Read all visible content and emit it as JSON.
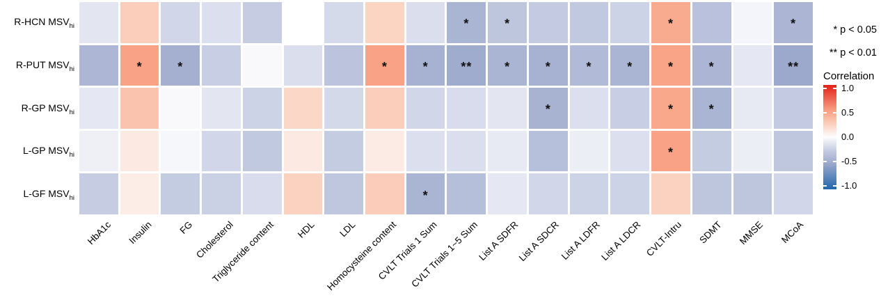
{
  "legend": {
    "p05": "* p < 0.05",
    "p01": "** p < 0.01",
    "colorbar_title": "Correlation",
    "colorbar_ticks": [
      "1.0",
      "0.5",
      "0.0",
      "-0.5",
      "-1.0"
    ],
    "colorbar_tick_values": [
      1.0,
      0.5,
      0.0,
      -0.5,
      -1.0
    ]
  },
  "chart_data": {
    "type": "heatmap",
    "rows": [
      {
        "label": "R-HCN MSV",
        "sub": "hi"
      },
      {
        "label": "R-PUT MSV",
        "sub": "hi"
      },
      {
        "label": "R-GP MSV",
        "sub": "hi"
      },
      {
        "label": "L-GP MSV",
        "sub": "hi"
      },
      {
        "label": "L-GF MSV",
        "sub": "hi"
      }
    ],
    "columns": [
      "HbA1c",
      "Insulin",
      "FG",
      "Cholesterol",
      "Triglyceride content",
      "HDL",
      "LDL",
      "Homocysteine content",
      "CVLT Trials 1 Sum",
      "CVLT Trials 1~5 Sum",
      "List A SDFR",
      "List A SDCR",
      "List A LDFR",
      "List A LDCR",
      "CVLT-Intru",
      "SDMT",
      "MMSE",
      "MCoA"
    ],
    "values": [
      [
        -0.12,
        0.26,
        -0.2,
        -0.15,
        -0.25,
        null,
        -0.18,
        0.23,
        -0.16,
        -0.42,
        -0.3,
        -0.27,
        -0.28,
        -0.22,
        0.45,
        -0.33,
        -0.04,
        -0.41
      ],
      [
        -0.4,
        0.5,
        -0.45,
        -0.24,
        -0.02,
        -0.16,
        -0.31,
        0.5,
        -0.44,
        -0.48,
        -0.42,
        -0.44,
        -0.38,
        -0.42,
        0.49,
        -0.41,
        -0.11,
        -0.5
      ],
      [
        -0.11,
        0.32,
        -0.02,
        -0.12,
        -0.22,
        0.21,
        -0.19,
        0.26,
        -0.2,
        -0.17,
        -0.12,
        -0.43,
        -0.15,
        -0.24,
        0.47,
        -0.42,
        -0.1,
        -0.27
      ],
      [
        -0.07,
        0.11,
        -0.03,
        -0.2,
        -0.28,
        0.11,
        -0.26,
        0.1,
        -0.15,
        -0.16,
        -0.1,
        -0.34,
        -0.08,
        -0.15,
        0.5,
        -0.26,
        -0.08,
        -0.29
      ],
      [
        -0.25,
        0.09,
        -0.26,
        -0.23,
        -0.17,
        0.24,
        -0.29,
        0.27,
        -0.42,
        -0.35,
        -0.11,
        -0.2,
        -0.22,
        -0.22,
        0.24,
        -0.3,
        -0.3,
        -0.2
      ]
    ],
    "significance": [
      [
        "",
        "",
        "",
        "",
        "",
        "",
        "",
        "",
        "",
        "*",
        "*",
        "",
        "",
        "",
        "*",
        "",
        "",
        "*"
      ],
      [
        "",
        "*",
        "*",
        "",
        "",
        "",
        "",
        "*",
        "*",
        "**",
        "*",
        "*",
        "*",
        "*",
        "*",
        "*",
        "",
        "**"
      ],
      [
        "",
        "",
        "",
        "",
        "",
        "",
        "",
        "",
        "",
        "",
        "",
        "*",
        "",
        "",
        "*",
        "*",
        "",
        ""
      ],
      [
        "",
        "",
        "",
        "",
        "",
        "",
        "",
        "",
        "",
        "",
        "",
        "",
        "",
        "",
        "*",
        "",
        "",
        ""
      ],
      [
        "",
        "",
        "",
        "",
        "",
        "",
        "",
        "",
        "*",
        "",
        "",
        "",
        "",
        "",
        "",
        "",
        "",
        ""
      ]
    ],
    "value_range": [
      -1,
      1
    ],
    "colorscale": [
      {
        "value": -1.0,
        "color": "#2166ac"
      },
      {
        "value": -0.5,
        "color": "#9da9cc"
      },
      {
        "value": -0.25,
        "color": "#c6cde3"
      },
      {
        "value": 0.0,
        "color": "#fdfdfe"
      },
      {
        "value": 0.25,
        "color": "#fbd0bd"
      },
      {
        "value": 0.5,
        "color": "#f9a285"
      },
      {
        "value": 1.0,
        "color": "#e32119"
      }
    ]
  }
}
